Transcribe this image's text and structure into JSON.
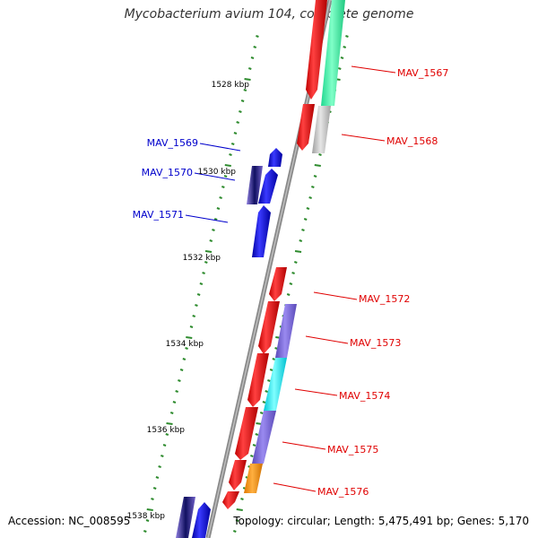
{
  "title": "Mycobacterium avium 104, complete genome",
  "footer": {
    "accession": "Accession: NC_008595",
    "topology": "Topology: circular; Length: 5,475,491 bp; Genes: 5,170"
  },
  "colors": {
    "backbone": "#8a8a8a",
    "ticks": "#2e8b2e",
    "label_forward": "#e00000",
    "label_reverse": "#0000cc"
  },
  "tick_labels": [
    "1528 kbp",
    "1530 kbp",
    "1532 kbp",
    "1534 kbp",
    "1536 kbp",
    "1538 kbp"
  ],
  "gene_labels": [
    {
      "id": "MAV_1567",
      "strand": "forward"
    },
    {
      "id": "MAV_1568",
      "strand": "forward"
    },
    {
      "id": "MAV_1569",
      "strand": "reverse"
    },
    {
      "id": "MAV_1570",
      "strand": "reverse"
    },
    {
      "id": "MAV_1571",
      "strand": "reverse"
    },
    {
      "id": "MAV_1572",
      "strand": "forward"
    },
    {
      "id": "MAV_1573",
      "strand": "forward"
    },
    {
      "id": "MAV_1574",
      "strand": "forward"
    },
    {
      "id": "MAV_1575",
      "strand": "forward"
    },
    {
      "id": "MAV_1576",
      "strand": "forward"
    }
  ]
}
